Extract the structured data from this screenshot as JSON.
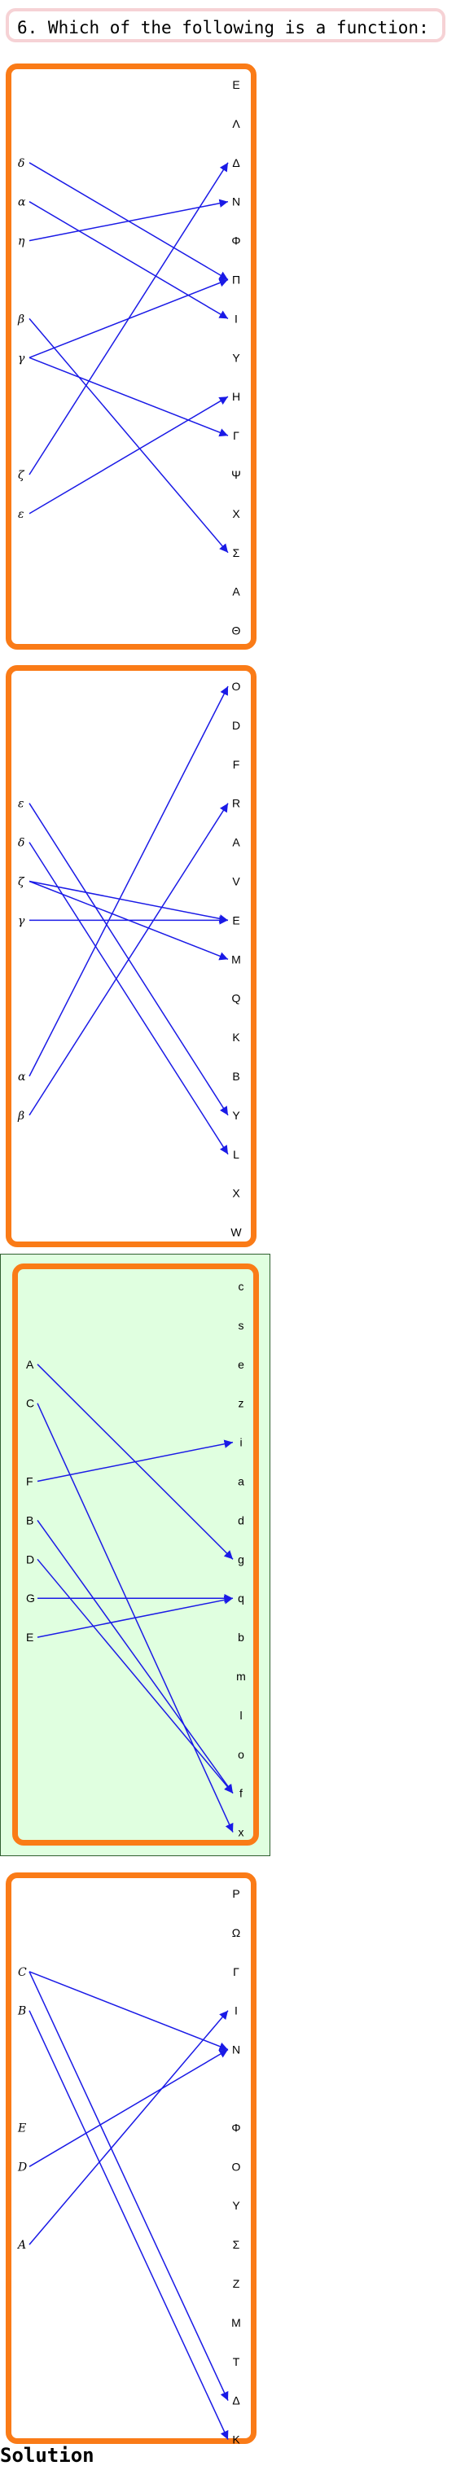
{
  "question": "6. Which of the following is a function:",
  "solution_label": "Solution",
  "colors": {
    "panel_border": "#fa7b17",
    "arrow": "#1a1ae6",
    "highlight_bg": "#e0ffe0",
    "question_border": "#f6d2d5"
  },
  "diagrams": [
    {
      "highlighted": false,
      "left": [
        "δ",
        "α",
        "η",
        "β",
        "γ",
        "ζ",
        "ε"
      ],
      "left_rows": [
        2,
        3,
        4,
        6,
        7,
        10,
        11
      ],
      "right": [
        "E",
        "Λ",
        "Δ",
        "N",
        "Φ",
        "Π",
        "I",
        "Y",
        "H",
        "Γ",
        "Ψ",
        "X",
        "Σ",
        "A",
        "Θ"
      ],
      "arrows": [
        [
          "δ",
          "Π"
        ],
        [
          "α",
          "I"
        ],
        [
          "η",
          "N"
        ],
        [
          "β",
          "Σ"
        ],
        [
          "γ",
          "Π"
        ],
        [
          "γ",
          "Γ"
        ],
        [
          "ζ",
          "Δ"
        ],
        [
          "ε",
          "H"
        ]
      ]
    },
    {
      "highlighted": false,
      "left": [
        "ε",
        "δ",
        "ζ",
        "γ",
        "α",
        "β"
      ],
      "left_rows": [
        3,
        4,
        5,
        6,
        10,
        11
      ],
      "right": [
        "O",
        "D",
        "F",
        "R",
        "A",
        "V",
        "E",
        "M",
        "Q",
        "K",
        "B",
        "Y",
        "L",
        "X",
        "W"
      ],
      "arrows": [
        [
          "ε",
          "Y"
        ],
        [
          "δ",
          "L"
        ],
        [
          "ζ",
          "E"
        ],
        [
          "ζ",
          "M"
        ],
        [
          "γ",
          "E"
        ],
        [
          "α",
          "O"
        ],
        [
          "β",
          "R"
        ]
      ]
    },
    {
      "highlighted": true,
      "left": [
        "A",
        "C",
        "F",
        "B",
        "D",
        "G",
        "E"
      ],
      "left_rows": [
        2,
        3,
        5,
        6,
        7,
        8,
        9
      ],
      "right": [
        "c",
        "s",
        "e",
        "z",
        "i",
        "a",
        "d",
        "g",
        "q",
        "b",
        "m",
        "l",
        "o",
        "f",
        "x"
      ],
      "arrows": [
        [
          "A",
          "g"
        ],
        [
          "C",
          "x"
        ],
        [
          "F",
          "i"
        ],
        [
          "B",
          "f"
        ],
        [
          "D",
          "f"
        ],
        [
          "G",
          "q"
        ],
        [
          "E",
          "q"
        ]
      ]
    },
    {
      "highlighted": false,
      "left": [
        "C",
        "B",
        "E",
        "D",
        "A"
      ],
      "left_rows": [
        2,
        3,
        6,
        7,
        9
      ],
      "right": [
        "P",
        "Ω",
        "Γ",
        "I",
        "N",
        "",
        "Φ",
        "O",
        "Y",
        "Σ",
        "Z",
        "M",
        "T",
        "Δ",
        "K"
      ],
      "arrows": [
        [
          "C",
          "N"
        ],
        [
          "C",
          "Δ"
        ],
        [
          "B",
          "K"
        ],
        [
          "D",
          "N"
        ],
        [
          "A",
          "I"
        ]
      ]
    }
  ]
}
